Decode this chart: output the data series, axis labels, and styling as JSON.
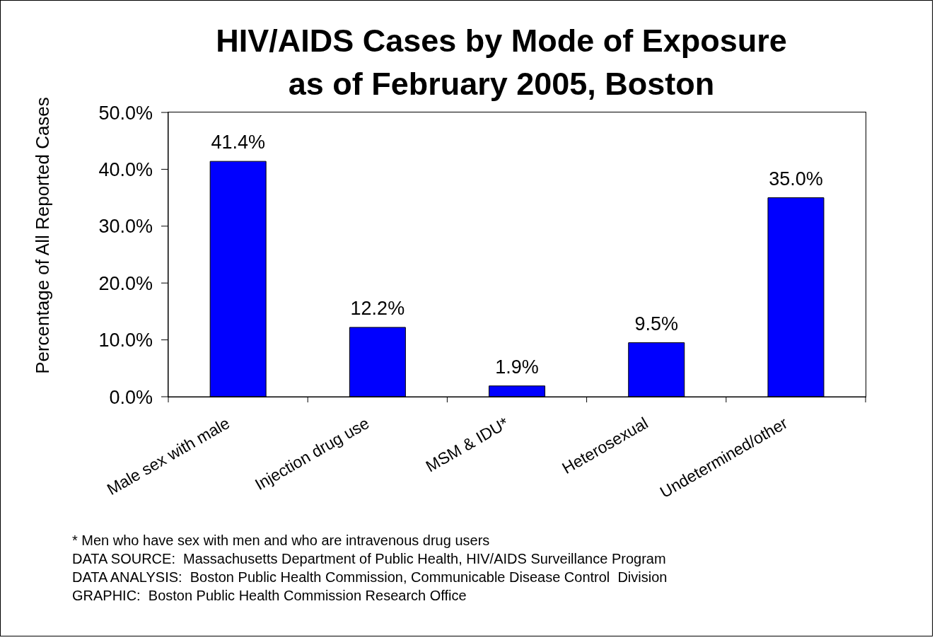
{
  "chart_data": {
    "type": "bar",
    "title": "HIV/AIDS Cases by Mode of Exposure as of February 2005, Boston",
    "ylabel": "Percentage of All Reported Cases",
    "categories": [
      "Male sex with male",
      "Injection drug use",
      "MSM & IDU*",
      "Heterosexual",
      "Undetermined/other"
    ],
    "values": [
      41.4,
      12.2,
      1.9,
      9.5,
      35.0
    ],
    "value_labels": [
      "41.4%",
      "12.2%",
      "1.9%",
      "9.5%",
      "35.0%"
    ],
    "color": "#0000ff",
    "ylim": [
      0,
      50
    ],
    "yticks": [
      {
        "value": 0,
        "label": "0.0%"
      },
      {
        "value": 10,
        "label": "10.0%"
      },
      {
        "value": 20,
        "label": "20.0%"
      },
      {
        "value": 30,
        "label": "30.0%"
      },
      {
        "value": 40,
        "label": "40.0%"
      },
      {
        "value": 50,
        "label": "50.0%"
      }
    ],
    "annotations": [
      "* Men who have sex with men and who are intravenous drug users",
      "DATA SOURCE:  Massachusetts Department of Public Health, HIV/AIDS Surveillance Program",
      "DATA ANALYSIS:  Boston Public Health Commission, Communicable Disease Control  Division",
      "GRAPHIC:  Boston Public Health Commission Research Office"
    ]
  }
}
